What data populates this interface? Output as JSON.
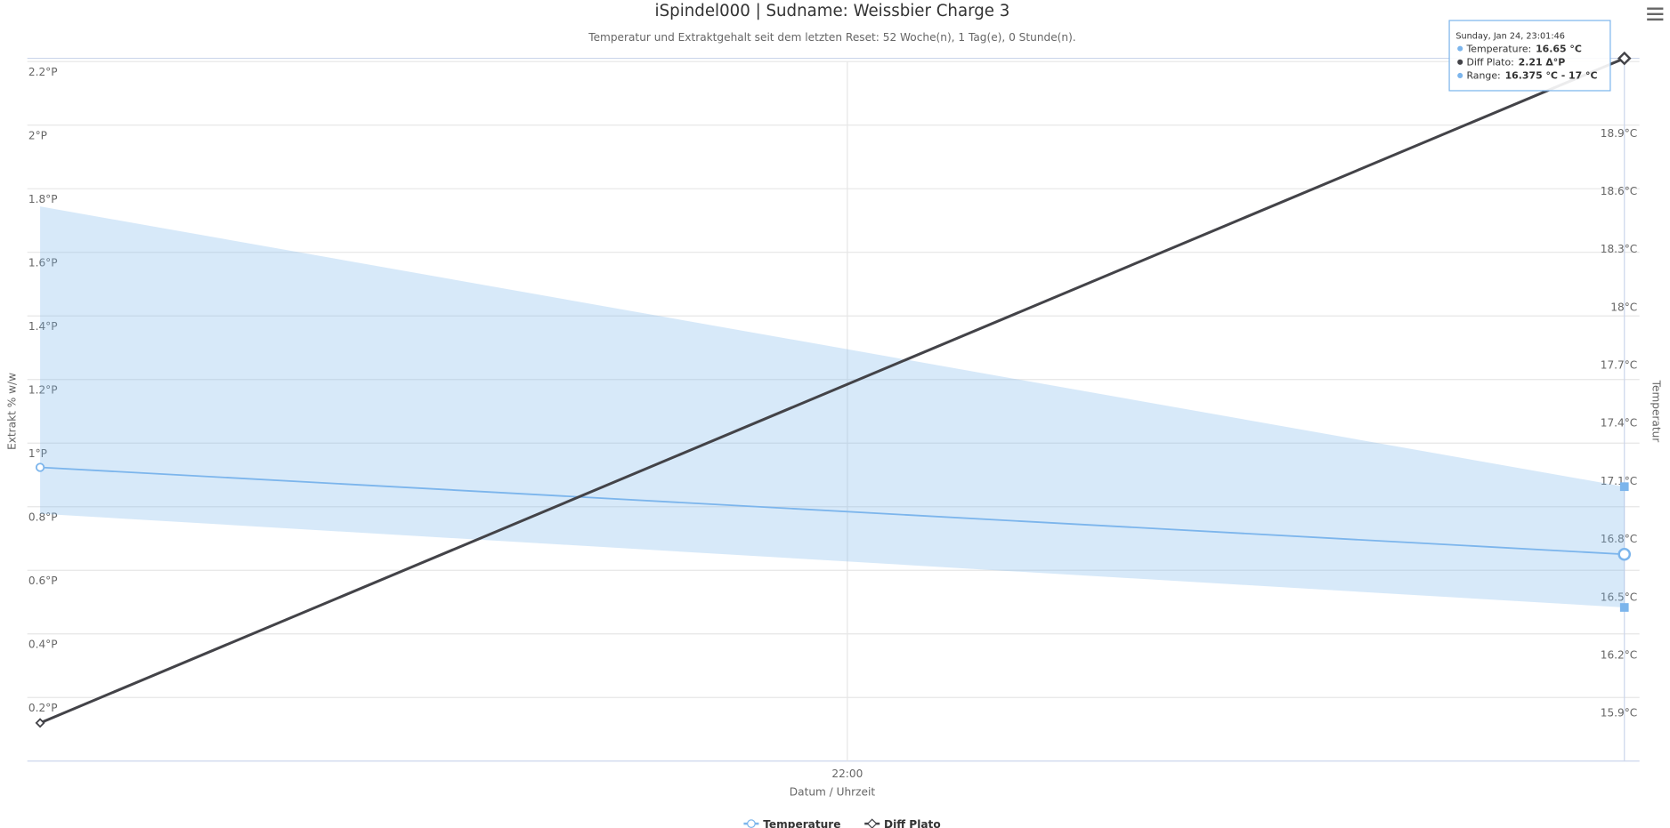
{
  "chart_data": {
    "type": "line",
    "title": "iSpindel000 | Sudname: Weissbier Charge 3",
    "subtitle": "Temperatur und Extraktgehalt seit dem letzten Reset: 52 Woche(n), 1 Tag(e), 0 Stunde(n).",
    "x_label": "Datum / Uhrzeit",
    "y_label": "Extrakt % w/w",
    "y2_label": "Temperatur",
    "x": [
      20.93,
      23.03
    ],
    "xlim": [
      20.913,
      23.05
    ],
    "xticks": [
      {
        "value": 22,
        "label": "22:00"
      }
    ],
    "ylim": [
      0,
      2.2
    ],
    "yticks": [
      {
        "value": 0.2,
        "label": "0.2°P"
      },
      {
        "value": 0.4,
        "label": "0.4°P"
      },
      {
        "value": 0.6,
        "label": "0.6°P"
      },
      {
        "value": 0.8,
        "label": "0.8°P"
      },
      {
        "value": 1,
        "label": "1°P"
      },
      {
        "value": 1.2,
        "label": "1.2°P"
      },
      {
        "value": 1.4,
        "label": "1.4°P"
      },
      {
        "value": 1.6,
        "label": "1.6°P"
      },
      {
        "value": 1.8,
        "label": "1.8°P"
      },
      {
        "value": 2,
        "label": "2°P"
      },
      {
        "value": 2.2,
        "label": "2.2°P"
      }
    ],
    "y2lim": [
      15.58,
      19.2
    ],
    "y2ticks": [
      {
        "value": 15.9,
        "label": "15.9°C"
      },
      {
        "value": 16.2,
        "label": "16.2°C"
      },
      {
        "value": 16.5,
        "label": "16.5°C"
      },
      {
        "value": 16.8,
        "label": "16.8°C"
      },
      {
        "value": 17.1,
        "label": "17.1°C"
      },
      {
        "value": 17.4,
        "label": "17.4°C"
      },
      {
        "value": 17.7,
        "label": "17.7°C"
      },
      {
        "value": 18,
        "label": "18°C"
      },
      {
        "value": 18.3,
        "label": "18.3°C"
      },
      {
        "value": 18.6,
        "label": "18.6°C"
      },
      {
        "value": 18.9,
        "label": "18.9°C"
      }
    ],
    "grid": true,
    "range": {
      "name": "Range",
      "color": "#7cb5ec",
      "low": [
        16.86,
        16.375
      ],
      "high": [
        18.45,
        17
      ],
      "axis": "y2"
    },
    "series": [
      {
        "name": "Temperature",
        "color": "#7cb5ec",
        "values": [
          17.1,
          16.65
        ],
        "axis": "y2",
        "marker": "circle"
      },
      {
        "name": "Diff Plato",
        "color": "#434348",
        "values": [
          0.12,
          2.21
        ],
        "marker": "diamond"
      }
    ],
    "tooltip": {
      "title": "Sunday, Jan 24, 23:01:46",
      "rows": [
        {
          "label": "Temperature:",
          "value": "16.65 °C",
          "color": "#7cb5ec"
        },
        {
          "label": "Diff Plato:",
          "value": "2.21 Δ°P",
          "color": "#434348"
        },
        {
          "label": "Range:",
          "value": "16.375 °C - 17 °C",
          "color": "#7cb5ec"
        }
      ]
    }
  }
}
